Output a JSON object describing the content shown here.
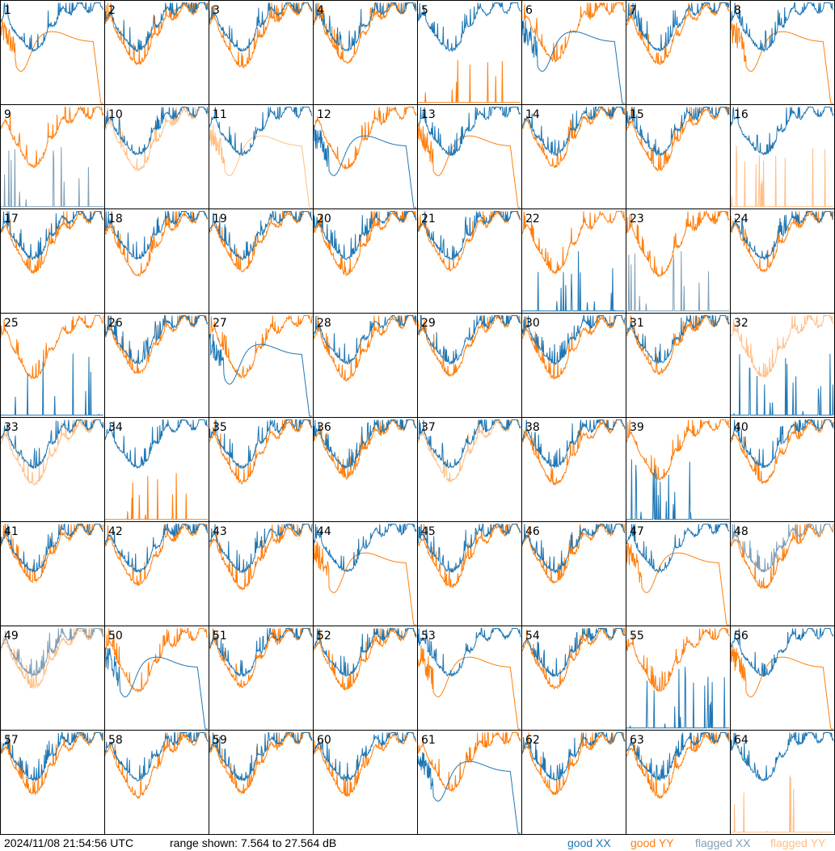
{
  "footer": {
    "timestamp": "2024/11/08 21:54:56 UTC",
    "range_text": "range shown: 7.564 to 27.564 dB",
    "legend": [
      {
        "label": "good XX",
        "color": "#1f77b4"
      },
      {
        "label": "good YY",
        "color": "#ff7f0e"
      },
      {
        "label": "flagged XX",
        "color": "#7f9fb8"
      },
      {
        "label": "flagged YY",
        "color": "#ffbf86"
      }
    ]
  },
  "chart_data": {
    "type": "line",
    "title": "",
    "grid_columns": 8,
    "range_db": [
      7.564,
      27.564
    ],
    "colors": {
      "good_xx": "#1f77b4",
      "good_yy": "#ff7f0e",
      "flagged_xx": "#7f9fb8",
      "flagged_yy": "#ffbf86"
    },
    "panels": [
      {
        "id": "1",
        "xx": "good:normal",
        "yy": "good:smooth"
      },
      {
        "id": "2",
        "xx": "good:normal",
        "yy": "good:normal"
      },
      {
        "id": "3",
        "xx": "good:normal",
        "yy": "good:normal"
      },
      {
        "id": "4",
        "xx": "good:normal",
        "yy": "good:normal"
      },
      {
        "id": "5",
        "xx": "good:normal",
        "yy": "good:spikes"
      },
      {
        "id": "6",
        "xx": "good:smooth",
        "yy": "good:normal"
      },
      {
        "id": "7",
        "xx": "good:normal",
        "yy": "good:normal"
      },
      {
        "id": "8",
        "xx": "good:normal",
        "yy": "good:smooth"
      },
      {
        "id": "9",
        "xx": "flagged:spikes",
        "yy": "good:normal"
      },
      {
        "id": "10",
        "xx": "good:normal",
        "yy": "flagged:normal"
      },
      {
        "id": "11",
        "xx": "good:normal",
        "yy": "flagged:smooth"
      },
      {
        "id": "12",
        "xx": "good:smooth",
        "yy": "good:normal"
      },
      {
        "id": "13",
        "xx": "good:normal",
        "yy": "good:smooth"
      },
      {
        "id": "14",
        "xx": "good:normal",
        "yy": "good:normal"
      },
      {
        "id": "15",
        "xx": "good:normal",
        "yy": "good:normal"
      },
      {
        "id": "16",
        "xx": "good:normal",
        "yy": "flagged:spikes"
      },
      {
        "id": "17",
        "xx": "good:normal",
        "yy": "good:normal"
      },
      {
        "id": "18",
        "xx": "good:normal",
        "yy": "good:normal"
      },
      {
        "id": "19",
        "xx": "good:normal",
        "yy": "good:normal"
      },
      {
        "id": "20",
        "xx": "good:normal",
        "yy": "good:normal"
      },
      {
        "id": "21",
        "xx": "good:normal",
        "yy": "good:normal"
      },
      {
        "id": "22",
        "xx": "good:spikes",
        "yy": "good:normal"
      },
      {
        "id": "23",
        "xx": "flagged:spikes",
        "yy": "good:normal"
      },
      {
        "id": "24",
        "xx": "good:normal",
        "yy": "good:normal"
      },
      {
        "id": "25",
        "xx": "good:spikes",
        "yy": "good:normal"
      },
      {
        "id": "26",
        "xx": "good:normal",
        "yy": "good:normal"
      },
      {
        "id": "27",
        "xx": "good:smooth",
        "yy": "good:normal"
      },
      {
        "id": "28",
        "xx": "good:normal",
        "yy": "good:normal"
      },
      {
        "id": "29",
        "xx": "good:normal",
        "yy": "good:normal"
      },
      {
        "id": "30",
        "xx": "good:normal",
        "yy": "good:normal"
      },
      {
        "id": "31",
        "xx": "good:normal",
        "yy": "good:normal"
      },
      {
        "id": "32",
        "xx": "good:spikes",
        "yy": "flagged:normal"
      },
      {
        "id": "33",
        "xx": "good:normal",
        "yy": "flagged:normal"
      },
      {
        "id": "34",
        "xx": "good:normal",
        "yy": "good:spikes"
      },
      {
        "id": "35",
        "xx": "good:normal",
        "yy": "good:normal"
      },
      {
        "id": "36",
        "xx": "good:normal",
        "yy": "good:normal"
      },
      {
        "id": "37",
        "xx": "good:normal",
        "yy": "flagged:normal"
      },
      {
        "id": "38",
        "xx": "good:normal",
        "yy": "good:normal"
      },
      {
        "id": "39",
        "xx": "good:spikes",
        "yy": "good:normal"
      },
      {
        "id": "40",
        "xx": "good:normal",
        "yy": "good:normal"
      },
      {
        "id": "41",
        "xx": "good:normal",
        "yy": "good:normal"
      },
      {
        "id": "42",
        "xx": "good:normal",
        "yy": "good:normal"
      },
      {
        "id": "43",
        "xx": "good:normal",
        "yy": "good:normal"
      },
      {
        "id": "44",
        "xx": "good:normal",
        "yy": "good:smooth"
      },
      {
        "id": "45",
        "xx": "good:normal",
        "yy": "good:normal"
      },
      {
        "id": "46",
        "xx": "good:normal",
        "yy": "good:normal"
      },
      {
        "id": "47",
        "xx": "good:normal",
        "yy": "good:smooth"
      },
      {
        "id": "48",
        "xx": "flagged:normal",
        "yy": "good:normal"
      },
      {
        "id": "49",
        "xx": "flagged:normal",
        "yy": "flagged:normal"
      },
      {
        "id": "50",
        "xx": "good:smooth",
        "yy": "good:normal"
      },
      {
        "id": "51",
        "xx": "good:normal",
        "yy": "good:normal"
      },
      {
        "id": "52",
        "xx": "good:normal",
        "yy": "good:normal"
      },
      {
        "id": "53",
        "xx": "good:normal",
        "yy": "good:smooth"
      },
      {
        "id": "54",
        "xx": "good:normal",
        "yy": "good:normal"
      },
      {
        "id": "55",
        "xx": "good:spikes",
        "yy": "good:normal"
      },
      {
        "id": "56",
        "xx": "good:normal",
        "yy": "good:smooth"
      },
      {
        "id": "57",
        "xx": "good:normal",
        "yy": "good:normal"
      },
      {
        "id": "58",
        "xx": "good:normal",
        "yy": "good:normal"
      },
      {
        "id": "59",
        "xx": "good:normal",
        "yy": "good:normal"
      },
      {
        "id": "60",
        "xx": "good:normal",
        "yy": "good:normal"
      },
      {
        "id": "61",
        "xx": "good:smooth",
        "yy": "good:normal"
      },
      {
        "id": "62",
        "xx": "good:normal",
        "yy": "good:normal"
      },
      {
        "id": "63",
        "xx": "good:normal",
        "yy": "good:normal"
      },
      {
        "id": "64",
        "xx": "good:normal",
        "yy": "flagged:spikes"
      }
    ]
  }
}
